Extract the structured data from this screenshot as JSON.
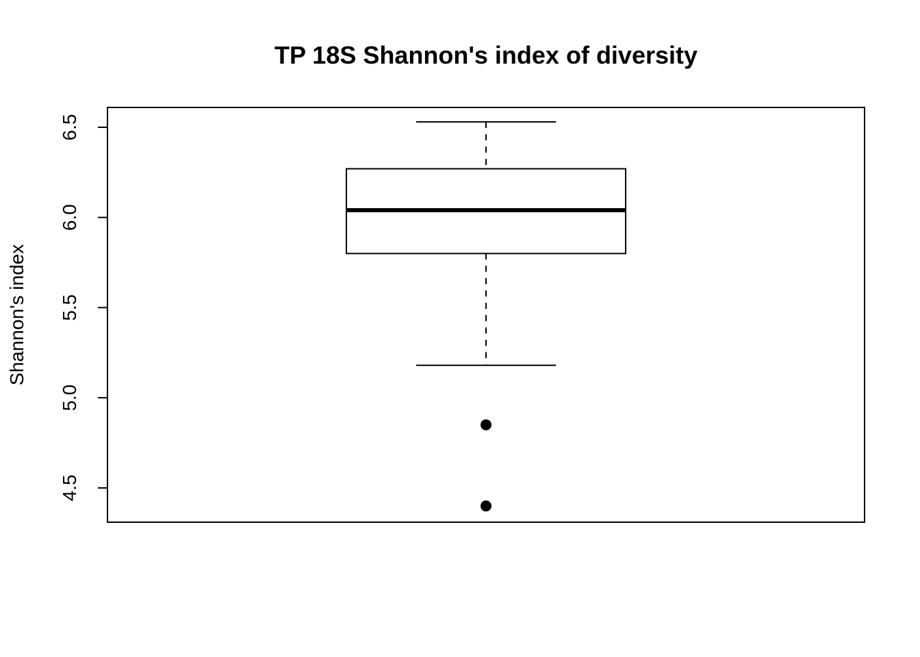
{
  "chart_data": {
    "type": "box",
    "title": "TP 18S Shannon's index of diversity",
    "xlabel": "",
    "ylabel": "Shannon's index",
    "ylim": [
      4.31,
      6.61
    ],
    "yticks": [
      4.5,
      5.0,
      5.5,
      6.0,
      6.5
    ],
    "ytick_labels": [
      "4.5",
      "5.0",
      "5.5",
      "6.0",
      "6.5"
    ],
    "boxes": [
      {
        "whisker_low": 5.18,
        "q1": 5.8,
        "median": 6.04,
        "q3": 6.27,
        "whisker_high": 6.53,
        "outliers": [
          4.85,
          4.4
        ]
      }
    ],
    "grid": false,
    "legend": "none"
  }
}
